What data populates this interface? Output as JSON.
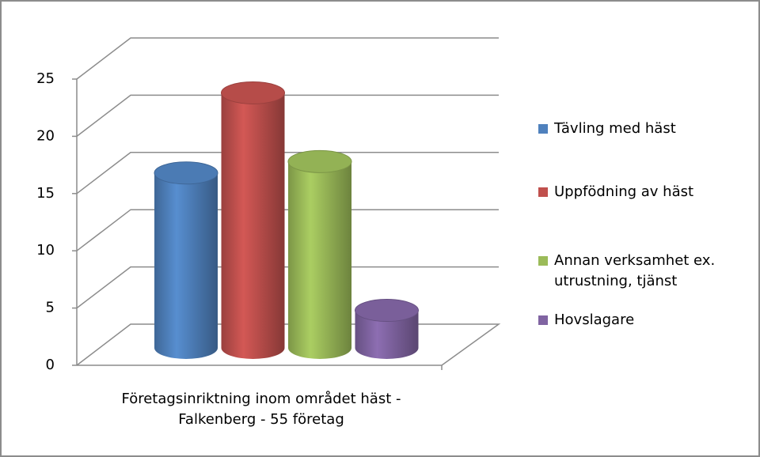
{
  "chart_data": {
    "type": "bar3d",
    "categories": [
      "Företagsinriktning inom området häst - Falkenberg - 55 företag"
    ],
    "series": [
      {
        "name": "Tävling med häst",
        "color": "#4f81bd",
        "values": [
          15
        ]
      },
      {
        "name": "Uppfödning av häst",
        "color": "#c0504d",
        "values": [
          22
        ]
      },
      {
        "name": "Annan verksamhet ex. utrustning, tjänst",
        "color": "#9bbb59",
        "values": [
          16
        ]
      },
      {
        "name": "Hovslagare",
        "color": "#8064a2",
        "values": [
          3
        ]
      }
    ],
    "ylim": [
      0,
      25
    ],
    "yticks": [
      0,
      5,
      10,
      15,
      20,
      25
    ],
    "grid": true,
    "legend": "right"
  }
}
